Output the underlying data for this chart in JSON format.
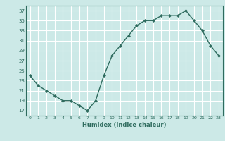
{
  "x": [
    0,
    1,
    2,
    3,
    4,
    5,
    6,
    7,
    8,
    9,
    10,
    11,
    12,
    13,
    14,
    15,
    16,
    17,
    18,
    19,
    20,
    21,
    22,
    23
  ],
  "y": [
    24,
    22,
    21,
    20,
    19,
    19,
    18,
    17,
    19,
    24,
    28,
    30,
    32,
    34,
    35,
    35,
    36,
    36,
    36,
    37,
    35,
    33,
    30,
    28
  ],
  "xlim": [
    -0.5,
    23.5
  ],
  "ylim": [
    16,
    38
  ],
  "yticks": [
    17,
    19,
    21,
    23,
    25,
    27,
    29,
    31,
    33,
    35,
    37
  ],
  "xticks": [
    0,
    1,
    2,
    3,
    4,
    5,
    6,
    7,
    8,
    9,
    10,
    11,
    12,
    13,
    14,
    15,
    16,
    17,
    18,
    19,
    20,
    21,
    22,
    23
  ],
  "xlabel": "Humidex (Indice chaleur)",
  "line_color": "#2e6b5e",
  "bg_color": "#cce9e7",
  "grid_color": "#ffffff"
}
